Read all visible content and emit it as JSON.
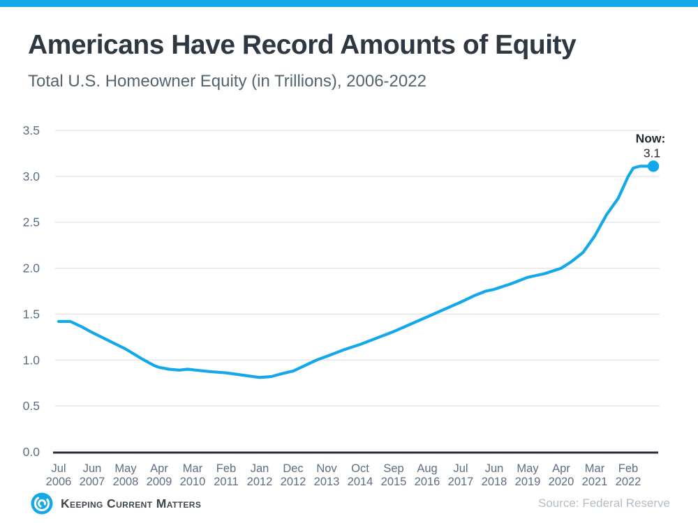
{
  "colors": {
    "accent": "#14a8ea",
    "title_text": "#2d3842",
    "subtitle_text": "#51646f",
    "tick_text": "#5b6e84",
    "axis_line": "#272f37",
    "grid_line": "#e2e2e4",
    "annotation_text": "#1f2830",
    "brand_text": "#3d444b",
    "source_text": "#b3bdc6"
  },
  "header": {
    "title": "Americans Have Record Amounts of Equity",
    "subtitle": "Total U.S. Homeowner Equity (in Trillions), 2006-2022"
  },
  "footer": {
    "brand": "Keeping Current Matters",
    "brand_logo_icon": "kcm-swirl-icon",
    "source": "Source: Federal Reserve"
  },
  "chart_data": {
    "type": "line",
    "title": "Americans Have Record Amounts of Equity",
    "subtitle": "Total U.S. Homeowner Equity (in Trillions), 2006-2022",
    "ylabel": "",
    "xlabel": "",
    "ylim": [
      0,
      3.5
    ],
    "y_ticks": [
      0,
      0.5,
      1.0,
      1.5,
      2.0,
      2.5,
      3.0,
      3.5
    ],
    "grid": "horizontal",
    "legend": "none",
    "x_tick_labels": [
      {
        "month": "Jul",
        "year": "2006"
      },
      {
        "month": "Jun",
        "year": "2007"
      },
      {
        "month": "May",
        "year": "2008"
      },
      {
        "month": "Apr",
        "year": "2009"
      },
      {
        "month": "Mar",
        "year": "2010"
      },
      {
        "month": "Feb",
        "year": "2011"
      },
      {
        "month": "Jan",
        "year": "2012"
      },
      {
        "month": "Dec",
        "year": "2012"
      },
      {
        "month": "Nov",
        "year": "2013"
      },
      {
        "month": "Oct",
        "year": "2014"
      },
      {
        "month": "Sep",
        "year": "2015"
      },
      {
        "month": "Aug",
        "year": "2016"
      },
      {
        "month": "Jul",
        "year": "2017"
      },
      {
        "month": "Jun",
        "year": "2018"
      },
      {
        "month": "May",
        "year": "2019"
      },
      {
        "month": "Apr",
        "year": "2020"
      },
      {
        "month": "Mar",
        "year": "2021"
      },
      {
        "month": "Feb",
        "year": "2022"
      }
    ],
    "series": [
      {
        "name": "Total U.S. Homeowner Equity (Trillions of $)",
        "color": "#14a8ea",
        "points": [
          [
            0,
            1.42
          ],
          [
            0.35,
            1.42
          ],
          [
            0.7,
            1.36
          ],
          [
            1,
            1.3
          ],
          [
            1.5,
            1.21
          ],
          [
            2,
            1.12
          ],
          [
            2.5,
            1.01
          ],
          [
            2.85,
            0.94
          ],
          [
            3,
            0.92
          ],
          [
            3.3,
            0.9
          ],
          [
            3.6,
            0.89
          ],
          [
            3.85,
            0.9
          ],
          [
            4.1,
            0.89
          ],
          [
            4.5,
            0.875
          ],
          [
            5,
            0.86
          ],
          [
            5.5,
            0.835
          ],
          [
            6,
            0.81
          ],
          [
            6.35,
            0.82
          ],
          [
            6.7,
            0.855
          ],
          [
            7,
            0.88
          ],
          [
            7.35,
            0.94
          ],
          [
            7.7,
            1.0
          ],
          [
            8,
            1.04
          ],
          [
            8.5,
            1.11
          ],
          [
            9,
            1.17
          ],
          [
            9.5,
            1.24
          ],
          [
            10,
            1.31
          ],
          [
            10.5,
            1.39
          ],
          [
            11,
            1.47
          ],
          [
            11.5,
            1.55
          ],
          [
            12,
            1.63
          ],
          [
            12.4,
            1.7
          ],
          [
            12.75,
            1.75
          ],
          [
            13,
            1.77
          ],
          [
            13.5,
            1.83
          ],
          [
            14,
            1.9
          ],
          [
            14.5,
            1.94
          ],
          [
            15,
            2.0
          ],
          [
            15.3,
            2.07
          ],
          [
            15.65,
            2.17
          ],
          [
            16,
            2.35
          ],
          [
            16.35,
            2.58
          ],
          [
            16.7,
            2.76
          ],
          [
            17,
            3.0
          ],
          [
            17.15,
            3.09
          ],
          [
            17.35,
            3.11
          ],
          [
            17.75,
            3.11
          ]
        ]
      }
    ],
    "annotation": {
      "label": "Now:",
      "value": "3.1"
    }
  }
}
